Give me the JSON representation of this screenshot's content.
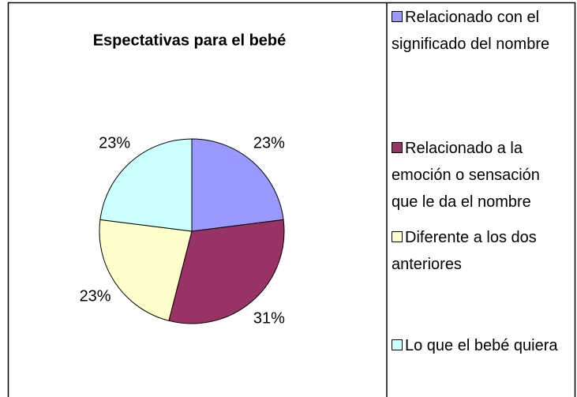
{
  "chart_data": {
    "type": "pie",
    "title": "Espectativas para el bebé",
    "categories": [
      "Relacionado con el significado del nombre",
      "Relacionado a la emoción o sensación que le da el nombre",
      "Diferente a los dos anteriores",
      "Lo que el bebé quiera"
    ],
    "values": [
      23,
      31,
      23,
      23
    ],
    "value_labels": [
      "23%",
      "31%",
      "23%",
      "23%"
    ],
    "colors": [
      "#9999ff",
      "#993366",
      "#ffffcc",
      "#ccffff"
    ]
  }
}
